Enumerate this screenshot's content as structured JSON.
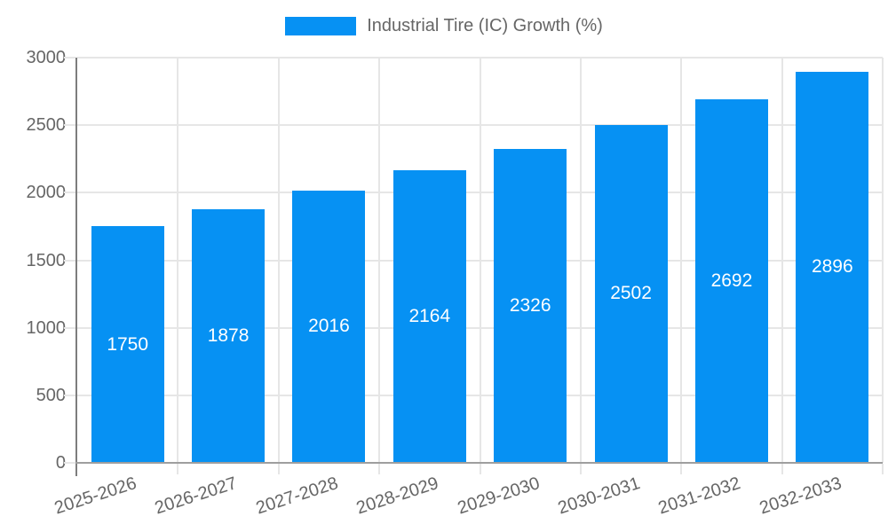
{
  "chart_data": {
    "type": "bar",
    "title": "",
    "legend": {
      "label": "Industrial Tire (IC) Growth (%)",
      "position": "top"
    },
    "categories": [
      "2025-2026",
      "2026-2027",
      "2027-2028",
      "2028-2029",
      "2029-2030",
      "2030-2031",
      "2031-2032",
      "2032-2033"
    ],
    "values": [
      1750,
      1878,
      2016,
      2164,
      2326,
      2502,
      2692,
      2896
    ],
    "value_labels": [
      "1750",
      "1878",
      "2016",
      "2164",
      "2326",
      "2502",
      "2692",
      "2896"
    ],
    "ylim": [
      0,
      3000
    ],
    "yticks": [
      0,
      500,
      1000,
      1500,
      2000,
      2500,
      3000
    ],
    "ytick_labels": [
      "0",
      "500",
      "1000",
      "1500",
      "2000",
      "2500",
      "3000"
    ],
    "xlabel": "",
    "ylabel": "",
    "grid": true,
    "colors": {
      "bar": "#0691f3",
      "value_label": "#ffffff",
      "axis_text": "#666666",
      "gridline": "#e6e6e6",
      "y_axis_line": "#7d7d7d",
      "x_axis_line": "#9e9e9e"
    }
  }
}
